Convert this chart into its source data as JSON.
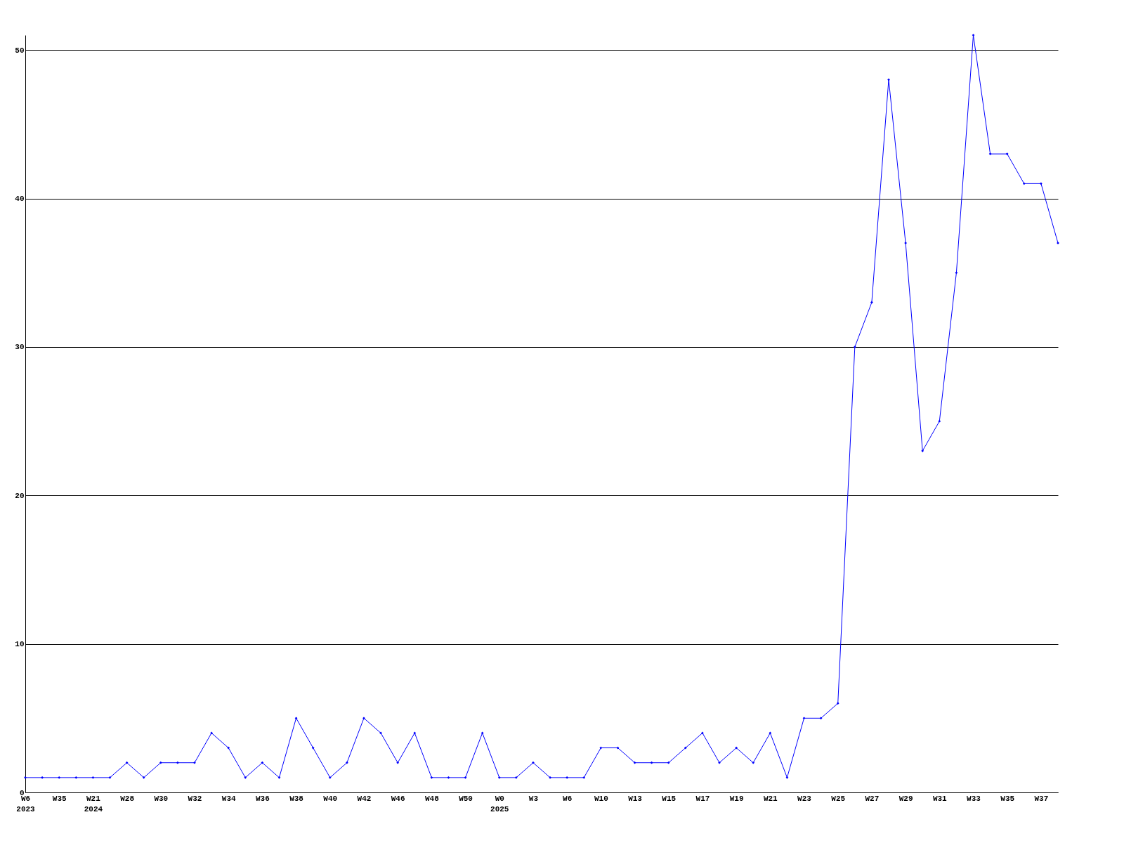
{
  "chart_data": {
    "type": "line",
    "categories": [
      "W6\n2023",
      null,
      "W35",
      null,
      "W21\n2024",
      null,
      "W28",
      null,
      "W30",
      null,
      "W32",
      null,
      "W34",
      null,
      "W36",
      null,
      "W38",
      null,
      "W40",
      null,
      "W42",
      null,
      "W46",
      null,
      "W48",
      null,
      "W50",
      null,
      "W0\n2025",
      null,
      "W3",
      null,
      "W6",
      null,
      "W10",
      null,
      "W13",
      null,
      "W15",
      null,
      "W17",
      null,
      "W19",
      null,
      "W21",
      null,
      "W23",
      null,
      "W25",
      null,
      "W27",
      null,
      "W29",
      null,
      "W31",
      null,
      "W33",
      null,
      "W35",
      null,
      "W37",
      null
    ],
    "series": [
      {
        "color": "#0000ff",
        "values": [
          1,
          1,
          1,
          1,
          1,
          1,
          2,
          1,
          2,
          2,
          2,
          4,
          3,
          1,
          2,
          1,
          5,
          3,
          1,
          2,
          5,
          4,
          2,
          4,
          1,
          1,
          1,
          4,
          1,
          1,
          2,
          1,
          1,
          1,
          3,
          3,
          2,
          2,
          2,
          3,
          4,
          2,
          3,
          2,
          4,
          1,
          5,
          5,
          6,
          30,
          33,
          48,
          37,
          23,
          25,
          35,
          51,
          43,
          43,
          41,
          41,
          37
        ]
      }
    ],
    "ylim": [
      0,
      51
    ],
    "yticks": [
      0,
      10,
      20,
      30,
      40,
      50
    ],
    "grid": "y",
    "marker": "diamond",
    "line_style": "solid"
  }
}
